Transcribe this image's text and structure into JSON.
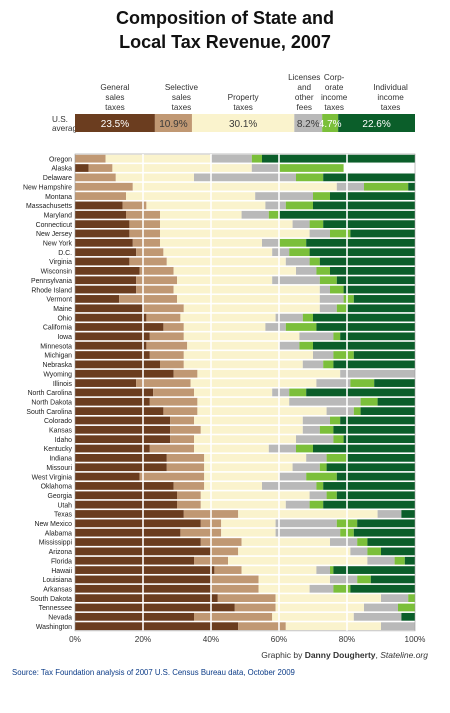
{
  "title_lines": [
    "Composition of State and",
    "Local Tax Revenue, 2007"
  ],
  "credit": {
    "prefix": "Graphic by ",
    "author": "Danny Dougherty",
    "separator": ", ",
    "site": "Stateline.org"
  },
  "source": "Source: Tax Foundation analysis of 2007 U.S. Census Bureau data, October 2009",
  "colors": {
    "general_sales": "#6b3d1f",
    "selective_sales": "#c09873",
    "property": "#faf3cd",
    "licenses": "#b9b9b9",
    "corporate": "#7bbf3a",
    "individual": "#0b5e2a",
    "grid": "#ffffff",
    "plot_border": "#999999"
  },
  "chart_data": {
    "type": "bar",
    "orientation": "horizontal",
    "stacked": true,
    "title": "Composition of State and Local Tax Revenue, 2007",
    "xlim": [
      0,
      100
    ],
    "x_ticks": [
      "0%",
      "20%",
      "40%",
      "60%",
      "80%",
      "100%"
    ],
    "grid": true,
    "series": [
      {
        "name": "General sales taxes",
        "label_lines": [
          "General",
          "sales",
          "taxes"
        ]
      },
      {
        "name": "Selective sales taxes",
        "label_lines": [
          "Selective",
          "sales",
          "taxes"
        ]
      },
      {
        "name": "Property taxes",
        "label_lines": [
          "Property",
          "taxes"
        ]
      },
      {
        "name": "Licenses and other fees",
        "label_lines": [
          "Licenses",
          "and",
          "other",
          "fees"
        ]
      },
      {
        "name": "Corporate income taxes",
        "label_lines": [
          "Corp-",
          "orate",
          "income",
          "taxes"
        ]
      },
      {
        "name": "Individual income taxes",
        "label_lines": [
          "Individual",
          "income",
          "taxes"
        ]
      }
    ],
    "us_average": {
      "label_lines": [
        "U.S.",
        "average"
      ],
      "values": [
        23.5,
        10.9,
        30.1,
        8.2,
        4.7,
        22.6
      ],
      "value_labels": [
        "23.5%",
        "10.9%",
        "30.1%",
        "8.2%",
        "4.7%",
        "22.6%"
      ]
    },
    "states": [
      {
        "name": "Oregon",
        "values": [
          0,
          9,
          31,
          12,
          3,
          45
        ]
      },
      {
        "name": "Alaska",
        "values": [
          4,
          7,
          41,
          8,
          19,
          0
        ]
      },
      {
        "name": "Delaware",
        "values": [
          0,
          12,
          23,
          30,
          8,
          27
        ]
      },
      {
        "name": "New Hampshire",
        "values": [
          0,
          17,
          60,
          8,
          13,
          2
        ]
      },
      {
        "name": "Montana",
        "values": [
          0,
          15,
          38,
          17,
          5,
          25
        ]
      },
      {
        "name": "Massachusetts",
        "values": [
          14,
          7,
          35,
          6,
          8,
          30
        ]
      },
      {
        "name": "Maryland",
        "values": [
          15,
          10,
          24,
          8,
          3,
          40
        ]
      },
      {
        "name": "Connecticut",
        "values": [
          16,
          9,
          39,
          5,
          4,
          27
        ]
      },
      {
        "name": "New Jersey",
        "values": [
          16,
          9,
          44,
          6,
          6,
          19
        ]
      },
      {
        "name": "New York",
        "values": [
          17,
          8,
          30,
          5,
          8,
          32
        ]
      },
      {
        "name": "D.C.",
        "values": [
          18,
          8,
          32,
          5,
          6,
          31
        ]
      },
      {
        "name": "Virginia",
        "values": [
          16,
          11,
          35,
          7,
          3,
          28
        ]
      },
      {
        "name": "Wisconsin",
        "values": [
          19,
          10,
          36,
          6,
          4,
          25
        ]
      },
      {
        "name": "Pennsylvania",
        "values": [
          18,
          12,
          28,
          14,
          5,
          23
        ]
      },
      {
        "name": "Rhode Island",
        "values": [
          18,
          11,
          43,
          3,
          4,
          21
        ]
      },
      {
        "name": "Vermont",
        "values": [
          13,
          17,
          42,
          7,
          3,
          18
        ]
      },
      {
        "name": "Maine",
        "values": [
          20,
          12,
          40,
          5,
          3,
          20
        ]
      },
      {
        "name": "Ohio",
        "values": [
          21,
          10,
          28,
          8,
          3,
          30
        ]
      },
      {
        "name": "California",
        "values": [
          26,
          6,
          24,
          6,
          9,
          29
        ]
      },
      {
        "name": "Iowa",
        "values": [
          22,
          10,
          34,
          10,
          2,
          22
        ]
      },
      {
        "name": "Minnesota",
        "values": [
          21,
          12,
          27,
          6,
          4,
          30
        ]
      },
      {
        "name": "Michigan",
        "values": [
          22,
          10,
          38,
          6,
          6,
          18
        ]
      },
      {
        "name": "Nebraska",
        "values": [
          25,
          7,
          35,
          6,
          3,
          24
        ]
      },
      {
        "name": "Wyoming",
        "values": [
          29,
          7,
          42,
          22,
          0,
          0
        ]
      },
      {
        "name": "Illinois",
        "values": [
          18,
          16,
          37,
          10,
          7,
          12
        ]
      },
      {
        "name": "North Carolina",
        "values": [
          23,
          12,
          23,
          5,
          5,
          32
        ]
      },
      {
        "name": "North Dakota",
        "values": [
          22,
          14,
          27,
          21,
          5,
          11
        ]
      },
      {
        "name": "South Carolina",
        "values": [
          26,
          10,
          38,
          8,
          2,
          16
        ]
      },
      {
        "name": "Colorado",
        "values": [
          28,
          7,
          32,
          8,
          3,
          22
        ]
      },
      {
        "name": "Kansas",
        "values": [
          28,
          9,
          30,
          5,
          4,
          24
        ]
      },
      {
        "name": "Idaho",
        "values": [
          28,
          7,
          30,
          11,
          3,
          21
        ]
      },
      {
        "name": "Kentucky",
        "values": [
          22,
          13,
          22,
          8,
          5,
          30
        ]
      },
      {
        "name": "Indiana",
        "values": [
          27,
          11,
          30,
          6,
          6,
          20
        ]
      },
      {
        "name": "Missouri",
        "values": [
          27,
          11,
          26,
          8,
          2,
          26
        ]
      },
      {
        "name": "West Virginia",
        "values": [
          19,
          19,
          22,
          8,
          9,
          23
        ]
      },
      {
        "name": "Oklahoma",
        "values": [
          29,
          9,
          17,
          16,
          2,
          27
        ]
      },
      {
        "name": "Georgia",
        "values": [
          30,
          7,
          32,
          5,
          3,
          23
        ]
      },
      {
        "name": "Utah",
        "values": [
          30,
          7,
          25,
          7,
          4,
          27
        ]
      },
      {
        "name": "Texas",
        "values": [
          32,
          16,
          41,
          7,
          0,
          4
        ]
      },
      {
        "name": "New Mexico",
        "values": [
          37,
          6,
          16,
          18,
          6,
          17
        ]
      },
      {
        "name": "Alabama",
        "values": [
          31,
          12,
          16,
          19,
          4,
          18
        ]
      },
      {
        "name": "Mississippi",
        "values": [
          37,
          12,
          26,
          8,
          3,
          14
        ]
      },
      {
        "name": "Arizona",
        "values": [
          40,
          8,
          33,
          5,
          4,
          10
        ]
      },
      {
        "name": "Florida",
        "values": [
          35,
          10,
          41,
          8,
          3,
          3
        ]
      },
      {
        "name": "Hawaii",
        "values": [
          41,
          8,
          22,
          4,
          1,
          24
        ]
      },
      {
        "name": "Louisiana",
        "values": [
          40,
          14,
          21,
          8,
          4,
          13
        ]
      },
      {
        "name": "Arkansas",
        "values": [
          40,
          14,
          15,
          7,
          5,
          19
        ]
      },
      {
        "name": "South Dakota",
        "values": [
          42,
          17,
          31,
          8,
          2,
          0
        ]
      },
      {
        "name": "Tennessee",
        "values": [
          47,
          12,
          26,
          10,
          5,
          0
        ]
      },
      {
        "name": "Nevada",
        "values": [
          35,
          23,
          24,
          14,
          0,
          4
        ]
      },
      {
        "name": "Washington",
        "values": [
          48,
          14,
          28,
          10,
          0,
          0
        ]
      }
    ]
  }
}
